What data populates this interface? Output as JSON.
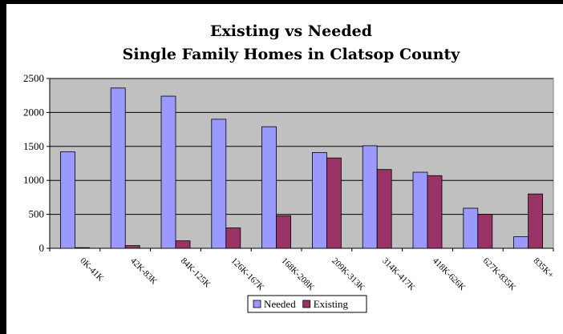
{
  "chart_data": {
    "type": "bar",
    "title_lines": [
      "Existing vs Needed",
      "Single Family Homes in Clatsop County"
    ],
    "categories": [
      "0K-41K",
      "42K-83K",
      "84K-125K",
      "126K-167K",
      "168K-208K",
      "209K-313K",
      "314K-417K",
      "418K-626K",
      "627K-835K",
      "835K+"
    ],
    "series": [
      {
        "name": "Needed",
        "color": "#9999ff",
        "values": [
          1420,
          2360,
          2240,
          1900,
          1790,
          1410,
          1510,
          1120,
          590,
          170
        ]
      },
      {
        "name": "Existing",
        "color": "#993366",
        "values": [
          10,
          40,
          110,
          300,
          480,
          1330,
          1160,
          1070,
          500,
          800
        ]
      }
    ],
    "ylim": [
      0,
      2500
    ],
    "yticks": [
      0,
      500,
      1000,
      1500,
      2000,
      2500
    ],
    "grid": true,
    "plot_background": "#c0c0c0",
    "legend_position": "bottom"
  }
}
